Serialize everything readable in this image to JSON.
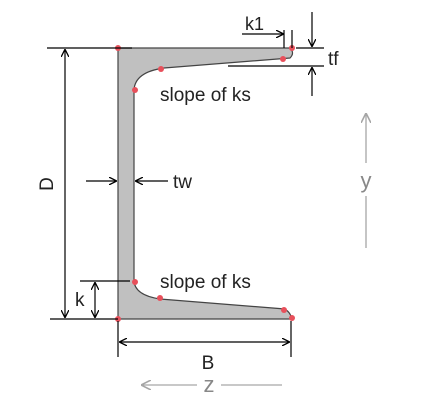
{
  "labels": {
    "D": "D",
    "B": "B",
    "k": "k",
    "k1": "k1",
    "tf": "tf",
    "tw": "tw",
    "slope_top": "slope of ks",
    "slope_bottom": "slope of ks",
    "y_axis": "y",
    "z_axis": "z"
  },
  "colors": {
    "section_fill": "#c0c0c0",
    "section_stroke": "#444444",
    "points": "#e8505b",
    "dimension": "#000000",
    "axis": "#a6a6a6"
  }
}
